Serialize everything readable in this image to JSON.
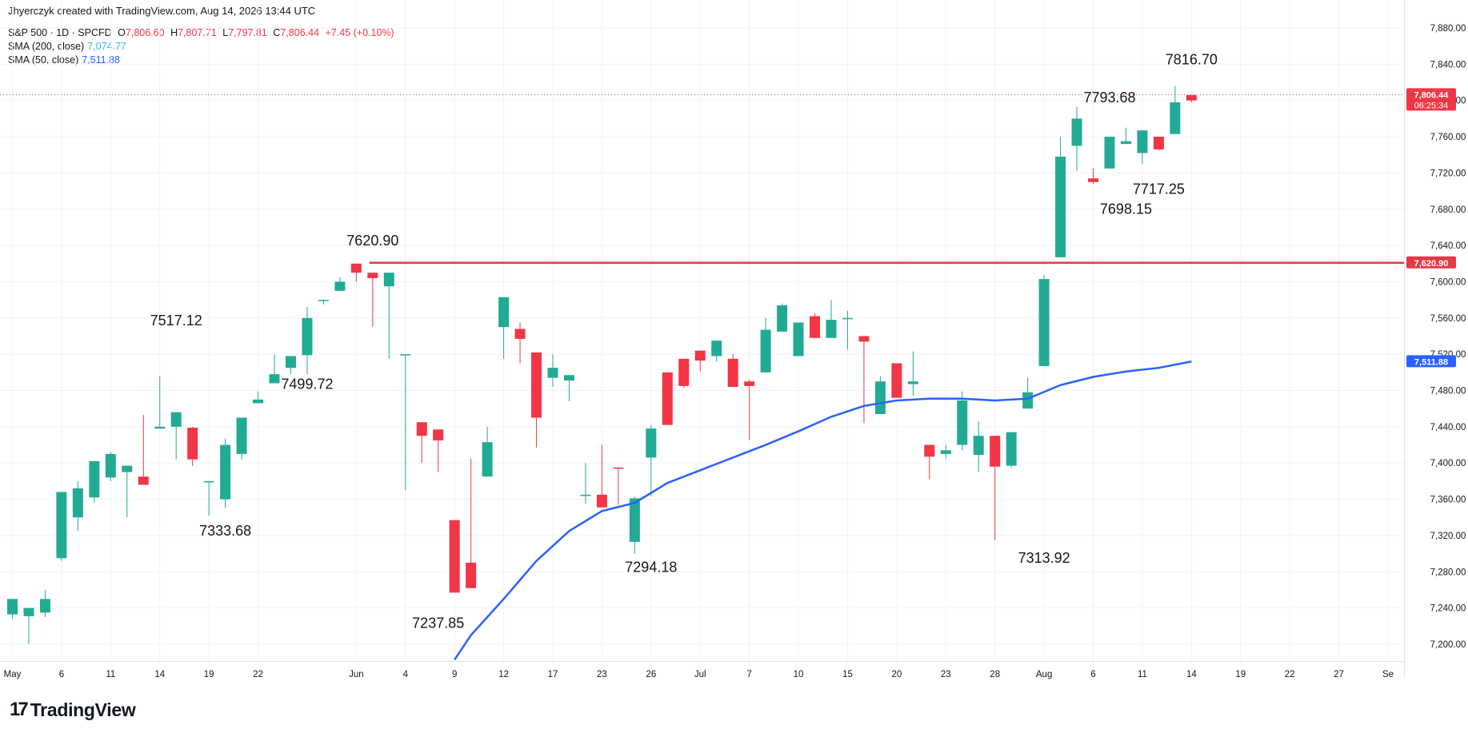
{
  "credit": "Jhyerczyk created with TradingView.com, Aug 14, 2026 13:44 UTC",
  "legend": {
    "symbol": "S&P 500 · 1D · SPCFD",
    "o_label": "O",
    "o_value": "7,806.60",
    "h_label": "H",
    "h_value": "7,807.71",
    "l_label": "L",
    "l_value": "7,797.81",
    "c_label": "C",
    "c_value": "7,806.44",
    "change": "+7.45 (+0.10%)",
    "sma200_label": "SMA (200, close)",
    "sma200_value": "7,074.77",
    "sma50_label": "SMA (50, close)",
    "sma50_value": "7,511.88"
  },
  "logo": "TradingView",
  "colors": {
    "up": "#22ab94",
    "down": "#f23645",
    "sma50": "#2962ff",
    "sma200": "#26c6da",
    "resistance": "#e53945",
    "grid": "#f0f3fa",
    "text": "#131722"
  },
  "chart_data": {
    "type": "candlestick",
    "title": "",
    "xlabel": "",
    "ylabel": "",
    "ylim": [
      7180,
      7900
    ],
    "y_ticks": [
      "7,200.00",
      "7,240.00",
      "7,280.00",
      "7,320.00",
      "7,360.00",
      "7,400.00",
      "7,440.00",
      "7,480.00",
      "7,520.00",
      "7,560.00",
      "7,600.00",
      "7,640.00",
      "7,680.00",
      "7,720.00",
      "7,760.00",
      "7,800.00",
      "7,840.00",
      "7,880.00"
    ],
    "y_tick_values": [
      7200,
      7240,
      7280,
      7320,
      7360,
      7400,
      7440,
      7480,
      7520,
      7560,
      7600,
      7640,
      7680,
      7720,
      7760,
      7800,
      7840,
      7880
    ],
    "x_ticks": [
      {
        "label": "May",
        "index": 0
      },
      {
        "label": "6",
        "index": 3
      },
      {
        "label": "11",
        "index": 6
      },
      {
        "label": "14",
        "index": 9
      },
      {
        "label": "19",
        "index": 12
      },
      {
        "label": "22",
        "index": 15
      },
      {
        "label": "Jun",
        "index": 21
      },
      {
        "label": "4",
        "index": 24
      },
      {
        "label": "9",
        "index": 27
      },
      {
        "label": "12",
        "index": 30
      },
      {
        "label": "17",
        "index": 33
      },
      {
        "label": "23",
        "index": 36
      },
      {
        "label": "26",
        "index": 39
      },
      {
        "label": "Jul",
        "index": 42
      },
      {
        "label": "7",
        "index": 45
      },
      {
        "label": "10",
        "index": 48
      },
      {
        "label": "15",
        "index": 51
      },
      {
        "label": "20",
        "index": 54
      },
      {
        "label": "23",
        "index": 57
      },
      {
        "label": "28",
        "index": 60
      },
      {
        "label": "Aug",
        "index": 63
      },
      {
        "label": "6",
        "index": 66
      },
      {
        "label": "11",
        "index": 69
      },
      {
        "label": "14",
        "index": 72
      },
      {
        "label": "19",
        "index": 75
      },
      {
        "label": "22",
        "index": 78
      },
      {
        "label": "27",
        "index": 81
      },
      {
        "label": "Se",
        "index": 84
      }
    ],
    "candles": [
      [
        7233,
        7250,
        7228,
        7230
      ],
      [
        7231,
        7240,
        7202,
        7200
      ],
      [
        7235,
        7250,
        7230,
        7260
      ],
      [
        7295,
        7368,
        7292,
        7365
      ],
      [
        7340,
        7372,
        7325,
        7380
      ],
      [
        7362,
        7402,
        7356,
        7397
      ],
      [
        7384,
        7410,
        7380,
        7412
      ],
      [
        7390,
        7397,
        7340,
        7395
      ],
      [
        7385,
        7376,
        7453,
        7435
      ],
      [
        7438,
        7440,
        7460,
        7496
      ],
      [
        7440,
        7456,
        7436,
        7404
      ],
      [
        7439,
        7404,
        7440,
        7397
      ],
      [
        7380,
        7380,
        7350,
        7342
      ],
      [
        7360,
        7420,
        7350,
        7427
      ],
      [
        7410,
        7450,
        7404,
        7443
      ],
      [
        7466,
        7470,
        7470,
        7479
      ],
      [
        7488,
        7498,
        7520,
        7503
      ],
      [
        7505,
        7518,
        7510,
        7498
      ],
      [
        7519,
        7560,
        7498,
        7572
      ],
      [
        7580,
        7580,
        7575,
        7575
      ],
      [
        7590,
        7600,
        7600,
        7605
      ],
      [
        7620,
        7610,
        7620,
        7600
      ],
      [
        7610,
        7604,
        7555,
        7550
      ],
      [
        7595,
        7610,
        7515,
        7595
      ],
      [
        7520,
        7520,
        7380,
        7370
      ],
      [
        7445,
        7430,
        7400,
        7445
      ],
      [
        7437,
        7425,
        7390,
        7430
      ],
      [
        7337,
        7257,
        7265,
        7265
      ],
      [
        7290,
        7262,
        7385,
        7405
      ],
      [
        7385,
        7423,
        7412,
        7440
      ],
      [
        7550,
        7583,
        7519,
        7515
      ],
      [
        7548,
        7537,
        7510,
        7555
      ],
      [
        7522,
        7450,
        7417,
        7420
      ],
      [
        7494,
        7505,
        7484,
        7520
      ],
      [
        7491,
        7497,
        7468,
        7482
      ],
      [
        7365,
        7365,
        7355,
        7400
      ],
      [
        7365,
        7351,
        7365,
        7420
      ],
      [
        7395,
        7394,
        7354,
        7372
      ],
      [
        7313,
        7361,
        7363,
        7300
      ],
      [
        7406,
        7438,
        7442,
        7363
      ],
      [
        7500,
        7442,
        7500,
        7476
      ],
      [
        7515,
        7485,
        7483,
        7505
      ],
      [
        7524,
        7513,
        7501,
        7519
      ],
      [
        7518,
        7535,
        7512,
        7535
      ],
      [
        7515,
        7484,
        7486,
        7520
      ],
      [
        7490,
        7485,
        7492,
        7425
      ],
      [
        7500,
        7547,
        7509,
        7560
      ],
      [
        7545,
        7574,
        7576,
        7569
      ],
      [
        7518,
        7555,
        7550,
        7555
      ],
      [
        7562,
        7538,
        7550,
        7565
      ],
      [
        7538,
        7558,
        7545,
        7580
      ],
      [
        7560,
        7560,
        7525,
        7568
      ],
      [
        7540,
        7534,
        7444,
        7515
      ],
      [
        7454,
        7490,
        7468,
        7496
      ],
      [
        7510,
        7472,
        7484,
        7510
      ],
      [
        7487,
        7490,
        7474,
        7523
      ],
      [
        7420,
        7407,
        7408,
        7382
      ],
      [
        7410,
        7414,
        7405,
        7420
      ],
      [
        7420,
        7469,
        7414,
        7479
      ],
      [
        7409,
        7430,
        7390,
        7446
      ],
      [
        7430,
        7396,
        7315,
        7315
      ],
      [
        7397,
        7434,
        7395,
        7420
      ],
      [
        7460,
        7478,
        7489,
        7494
      ],
      [
        7507,
        7603,
        7604,
        7607
      ],
      [
        7627,
        7738,
        7735,
        7760
      ],
      [
        7750,
        7780,
        7722,
        7793
      ],
      [
        7714,
        7710,
        7708,
        7725
      ],
      [
        7725,
        7760,
        7736,
        7745
      ],
      [
        7752,
        7755,
        7752,
        7770
      ],
      [
        7742,
        7767,
        7730,
        7760
      ],
      [
        7760,
        7746,
        7745,
        7748
      ],
      [
        7763,
        7798,
        7765,
        7816
      ],
      [
        7806,
        7800,
        7798,
        7806
      ]
    ],
    "sma50": [
      {
        "index": 27,
        "value": 7183
      },
      {
        "index": 28,
        "value": 7210
      },
      {
        "index": 30,
        "value": 7250
      },
      {
        "index": 32,
        "value": 7292
      },
      {
        "index": 34,
        "value": 7325
      },
      {
        "index": 36,
        "value": 7347
      },
      {
        "index": 38,
        "value": 7356
      },
      {
        "index": 40,
        "value": 7378
      },
      {
        "index": 42,
        "value": 7392
      },
      {
        "index": 44,
        "value": 7406
      },
      {
        "index": 46,
        "value": 7420
      },
      {
        "index": 48,
        "value": 7435
      },
      {
        "index": 50,
        "value": 7451
      },
      {
        "index": 52,
        "value": 7463
      },
      {
        "index": 54,
        "value": 7469
      },
      {
        "index": 56,
        "value": 7471
      },
      {
        "index": 58,
        "value": 7471
      },
      {
        "index": 60,
        "value": 7469
      },
      {
        "index": 62,
        "value": 7471
      },
      {
        "index": 64,
        "value": 7486
      },
      {
        "index": 66,
        "value": 7495
      },
      {
        "index": 68,
        "value": 7501
      },
      {
        "index": 70,
        "value": 7505
      },
      {
        "index": 72,
        "value": 7512
      }
    ],
    "resistance": {
      "value": 7620.9,
      "label": "7,620.90",
      "from_index": 22
    },
    "last_price": {
      "value": 7806.44,
      "label": "7,806.44",
      "countdown": "06:25:34"
    },
    "sma50_badge": "7,511.88",
    "annotations": [
      {
        "text": "7816.70",
        "index": 72,
        "price": 7840
      },
      {
        "text": "7793.68",
        "index": 67,
        "price": 7798
      },
      {
        "text": "7698.15",
        "index": 68,
        "price": 7675
      },
      {
        "text": "7717.25",
        "index": 70,
        "price": 7697
      },
      {
        "text": "7620.90",
        "index": 22,
        "price": 7640
      },
      {
        "text": "7517.12",
        "index": 10,
        "price": 7552
      },
      {
        "text": "7499.72",
        "index": 18,
        "price": 7482
      },
      {
        "text": "7333.68",
        "index": 13,
        "price": 7320
      },
      {
        "text": "7294.18",
        "index": 39,
        "price": 7280
      },
      {
        "text": "7237.85",
        "index": 26,
        "price": 7218
      },
      {
        "text": "7313.92",
        "index": 63,
        "price": 7290
      }
    ]
  }
}
